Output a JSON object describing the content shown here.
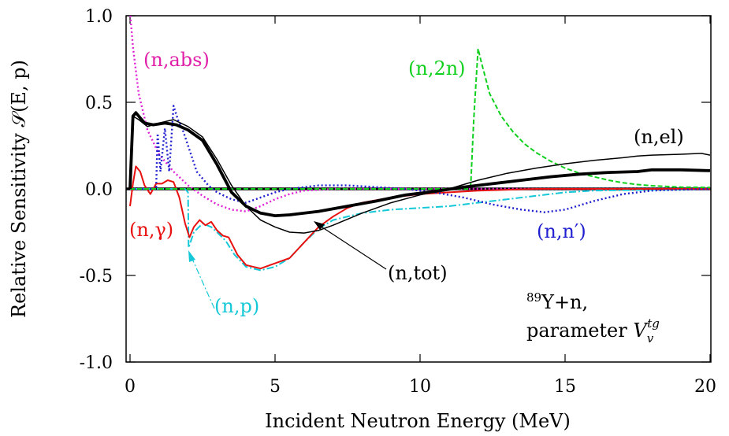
{
  "chart_data": {
    "type": "line",
    "xlabel": "Incident Neutron Energy (MeV)",
    "ylabel": "Relative Sensitivity 𝒮(E, p)",
    "xlim": [
      0,
      20
    ],
    "ylim": [
      -1.0,
      1.0
    ],
    "xticks": [
      "0",
      "5",
      "10",
      "15",
      "20"
    ],
    "yticks": [
      "1.0",
      "0.5",
      "0.0",
      "-0.5",
      "-1.0"
    ],
    "grid": false,
    "series": [
      {
        "name": "(n,el)",
        "color": "#000000",
        "style": "solid-thin",
        "points": [
          [
            0,
            0.0
          ],
          [
            0.1,
            0.42
          ],
          [
            0.3,
            0.4
          ],
          [
            0.6,
            0.36
          ],
          [
            1.0,
            0.38
          ],
          [
            1.5,
            0.4
          ],
          [
            2.0,
            0.36
          ],
          [
            2.5,
            0.3
          ],
          [
            3.0,
            0.17
          ],
          [
            3.5,
            0.02
          ],
          [
            4.0,
            -0.1
          ],
          [
            4.5,
            -0.18
          ],
          [
            5.0,
            -0.22
          ],
          [
            5.5,
            -0.25
          ],
          [
            6.0,
            -0.255
          ],
          [
            6.5,
            -0.24
          ],
          [
            7.0,
            -0.21
          ],
          [
            8.0,
            -0.14
          ],
          [
            9.0,
            -0.08
          ],
          [
            10.0,
            -0.035
          ],
          [
            11.0,
            0.0
          ],
          [
            12.0,
            0.05
          ],
          [
            13.0,
            0.09
          ],
          [
            14.0,
            0.12
          ],
          [
            15.0,
            0.145
          ],
          [
            16.0,
            0.165
          ],
          [
            17.0,
            0.18
          ],
          [
            17.5,
            0.19
          ],
          [
            18.0,
            0.195
          ],
          [
            19.0,
            0.2
          ],
          [
            19.7,
            0.205
          ],
          [
            20.0,
            0.195
          ]
        ]
      },
      {
        "name": "(n,tot)",
        "color": "#000000",
        "style": "solid-thick",
        "points": [
          [
            0,
            0.0
          ],
          [
            0.1,
            0.42
          ],
          [
            0.2,
            0.44
          ],
          [
            0.3,
            0.42
          ],
          [
            0.5,
            0.38
          ],
          [
            0.8,
            0.37
          ],
          [
            1.2,
            0.38
          ],
          [
            1.6,
            0.37
          ],
          [
            2.0,
            0.34
          ],
          [
            2.5,
            0.28
          ],
          [
            3.0,
            0.14
          ],
          [
            3.5,
            -0.02
          ],
          [
            4.0,
            -0.1
          ],
          [
            4.5,
            -0.14
          ],
          [
            5.0,
            -0.155
          ],
          [
            5.5,
            -0.15
          ],
          [
            6.5,
            -0.13
          ],
          [
            7.5,
            -0.1
          ],
          [
            8.5,
            -0.07
          ],
          [
            9.5,
            -0.035
          ],
          [
            10.5,
            -0.015
          ],
          [
            11.5,
            0.01
          ],
          [
            12.5,
            0.03
          ],
          [
            13.5,
            0.05
          ],
          [
            14.5,
            0.07
          ],
          [
            15.5,
            0.085
          ],
          [
            16.5,
            0.095
          ],
          [
            17.5,
            0.1
          ],
          [
            18.0,
            0.11
          ],
          [
            19.0,
            0.11
          ],
          [
            20.0,
            0.105
          ]
        ]
      },
      {
        "name": "(n,γ)",
        "color": "#e8110f",
        "style": "solid",
        "points": [
          [
            0,
            -0.1
          ],
          [
            0.1,
            0.03
          ],
          [
            0.2,
            0.13
          ],
          [
            0.35,
            0.1
          ],
          [
            0.5,
            0.02
          ],
          [
            0.7,
            -0.03
          ],
          [
            0.9,
            0.03
          ],
          [
            1.1,
            0.03
          ],
          [
            1.3,
            0.05
          ],
          [
            1.5,
            0.04
          ],
          [
            1.7,
            -0.05
          ],
          [
            1.9,
            -0.2
          ],
          [
            2.05,
            -0.28
          ],
          [
            2.2,
            -0.22
          ],
          [
            2.4,
            -0.18
          ],
          [
            2.6,
            -0.21
          ],
          [
            2.8,
            -0.19
          ],
          [
            3.0,
            -0.24
          ],
          [
            3.2,
            -0.27
          ],
          [
            3.4,
            -0.28
          ],
          [
            3.7,
            -0.38
          ],
          [
            4.0,
            -0.44
          ],
          [
            4.5,
            -0.46
          ],
          [
            5.0,
            -0.43
          ],
          [
            5.5,
            -0.4
          ],
          [
            6.0,
            -0.31
          ],
          [
            6.5,
            -0.22
          ],
          [
            7.0,
            -0.16
          ],
          [
            7.5,
            -0.11
          ],
          [
            8.0,
            -0.08
          ],
          [
            9.0,
            -0.05
          ],
          [
            10.0,
            -0.03
          ],
          [
            11.0,
            -0.02
          ],
          [
            12.0,
            -0.01
          ],
          [
            14.0,
            0.0
          ],
          [
            20.0,
            0.0
          ]
        ]
      },
      {
        "name": "(n,p)",
        "color": "#14c8d8",
        "style": "dash-dot",
        "points": [
          [
            0,
            0.0
          ],
          [
            1.9,
            0.0
          ],
          [
            2.0,
            -0.02
          ],
          [
            2.02,
            -0.34
          ],
          [
            2.2,
            -0.25
          ],
          [
            2.5,
            -0.2
          ],
          [
            2.8,
            -0.22
          ],
          [
            3.0,
            -0.25
          ],
          [
            3.3,
            -0.3
          ],
          [
            3.6,
            -0.38
          ],
          [
            4.0,
            -0.45
          ],
          [
            4.5,
            -0.47
          ],
          [
            5.0,
            -0.45
          ],
          [
            5.5,
            -0.4
          ],
          [
            6.0,
            -0.31
          ],
          [
            6.5,
            -0.23
          ],
          [
            7.0,
            -0.18
          ],
          [
            8.0,
            -0.14
          ],
          [
            9.0,
            -0.12
          ],
          [
            10.0,
            -0.11
          ],
          [
            11.0,
            -0.1
          ],
          [
            12.0,
            -0.08
          ],
          [
            13.0,
            -0.06
          ],
          [
            14.0,
            -0.04
          ],
          [
            15.0,
            -0.02
          ],
          [
            16.0,
            -0.01
          ],
          [
            20.0,
            0.0
          ]
        ]
      },
      {
        "name": "(n,n′)",
        "color": "#2020d0",
        "style": "dotted",
        "points": [
          [
            0,
            0.0
          ],
          [
            0.9,
            0.0
          ],
          [
            0.95,
            0.32
          ],
          [
            1.05,
            0.1
          ],
          [
            1.2,
            0.35
          ],
          [
            1.35,
            0.1
          ],
          [
            1.5,
            0.48
          ],
          [
            1.65,
            0.4
          ],
          [
            1.8,
            0.35
          ],
          [
            2.0,
            0.25
          ],
          [
            2.3,
            0.1
          ],
          [
            2.7,
            0.02
          ],
          [
            3.0,
            -0.02
          ],
          [
            3.5,
            -0.06
          ],
          [
            4.0,
            -0.08
          ],
          [
            4.5,
            -0.05
          ],
          [
            5.0,
            -0.02
          ],
          [
            5.5,
            0.0
          ],
          [
            6.0,
            0.01
          ],
          [
            6.5,
            0.02
          ],
          [
            7.5,
            0.02
          ],
          [
            8.5,
            0.01
          ],
          [
            9.5,
            0.0
          ],
          [
            10.5,
            -0.02
          ],
          [
            11.5,
            -0.05
          ],
          [
            12.5,
            -0.09
          ],
          [
            13.5,
            -0.12
          ],
          [
            14.3,
            -0.135
          ],
          [
            15.0,
            -0.12
          ],
          [
            16.0,
            -0.07
          ],
          [
            17.0,
            -0.03
          ],
          [
            18.0,
            -0.01
          ],
          [
            20.0,
            0.0
          ]
        ]
      },
      {
        "name": "(n,2n)",
        "color": "#10d01e",
        "style": "dashed",
        "points": [
          [
            0,
            0.0
          ],
          [
            11.7,
            0.0
          ],
          [
            11.75,
            0.03
          ],
          [
            11.85,
            0.4
          ],
          [
            12.0,
            0.81
          ],
          [
            12.1,
            0.74
          ],
          [
            12.4,
            0.55
          ],
          [
            12.8,
            0.42
          ],
          [
            13.2,
            0.33
          ],
          [
            13.6,
            0.26
          ],
          [
            14.0,
            0.21
          ],
          [
            14.5,
            0.16
          ],
          [
            15.0,
            0.12
          ],
          [
            15.5,
            0.09
          ],
          [
            16.0,
            0.07
          ],
          [
            16.5,
            0.05
          ],
          [
            17.0,
            0.035
          ],
          [
            17.5,
            0.025
          ],
          [
            18.0,
            0.018
          ],
          [
            19.0,
            0.01
          ],
          [
            20.0,
            0.008
          ]
        ]
      },
      {
        "name": "(n,abs)",
        "color": "#e020d8",
        "style": "dotted",
        "points": [
          [
            0.01,
            1.0
          ],
          [
            0.1,
            0.82
          ],
          [
            0.3,
            0.55
          ],
          [
            0.6,
            0.34
          ],
          [
            1.0,
            0.2
          ],
          [
            1.5,
            0.1
          ],
          [
            2.0,
            0.02
          ],
          [
            2.5,
            -0.04
          ],
          [
            3.0,
            -0.09
          ],
          [
            3.5,
            -0.12
          ],
          [
            4.0,
            -0.13
          ],
          [
            4.5,
            -0.1
          ],
          [
            5.0,
            -0.06
          ],
          [
            5.5,
            -0.03
          ],
          [
            6.0,
            -0.01
          ],
          [
            7.0,
            0.0
          ],
          [
            20.0,
            0.0
          ]
        ]
      }
    ],
    "zero_line": 0.0,
    "annotations": {
      "n_abs": "(n,abs)",
      "n_2n": "(n,2n)",
      "n_el": "(n,el)",
      "n_gamma": "(n,γ)",
      "n_nprime": "(n,n′)",
      "n_tot": "(n,tot)",
      "n_p": "(n,p)",
      "nucleus_sup": "89",
      "nucleus_rest": "Y+n,",
      "param_prefix": "parameter ",
      "param_var": "V",
      "param_sub": "v",
      "param_sup": "tg"
    }
  }
}
